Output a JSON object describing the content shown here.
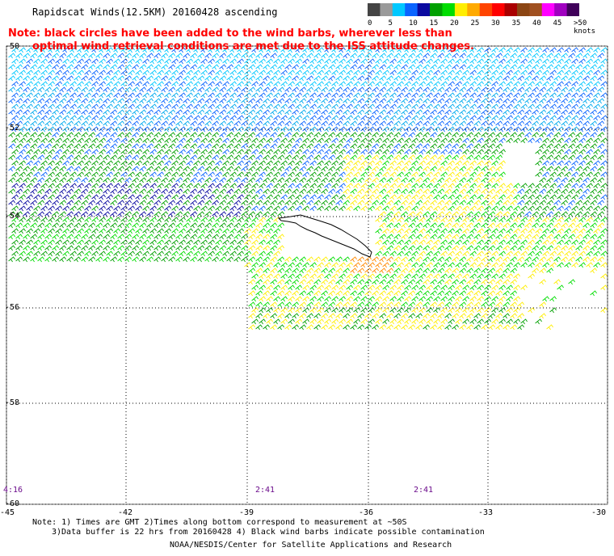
{
  "title": "Rapidscat Winds(12.5KM) 20160428 ascending",
  "note_line1": "Note: black circles have been added to the wind barbs, wherever less than",
  "note_line2": "optimal wind retrieval conditions are met due to the ISS attitude changes.",
  "legend": {
    "labels": [
      "0",
      "5",
      "10",
      "15",
      "20",
      "25",
      "30",
      "35",
      "40",
      "45",
      ">50 knots"
    ],
    "colors": [
      "#444444",
      "#9a9a9a",
      "#00c8ff",
      "#0a64ff",
      "#0a0aa0",
      "#00a000",
      "#00dd00",
      "#ffee00",
      "#ffaa00",
      "#ff4400",
      "#ff0000",
      "#aa0000",
      "#8b4513",
      "#a05020",
      "#ff00ff",
      "#a000c0",
      "#40005a"
    ]
  },
  "lat_labels": [
    "-50",
    "-52",
    "-54",
    "-56",
    "-58",
    "-60"
  ],
  "lon_labels": [
    "-45",
    "-42",
    "-39",
    "-36",
    "-33",
    "-30"
  ],
  "time_labels": [
    "4:16",
    "2:41",
    "2:41"
  ],
  "footer_line1": "Note: 1) Times are GMT 2)Times along bottom correspond to measurement at ~50S",
  "footer_line2": "3)Data buffer is 22 hrs from 20160428 4) Black wind barbs indicate possible contamination",
  "credit": "NOAA/NESDIS/Center for Satellite Applications and Research"
}
